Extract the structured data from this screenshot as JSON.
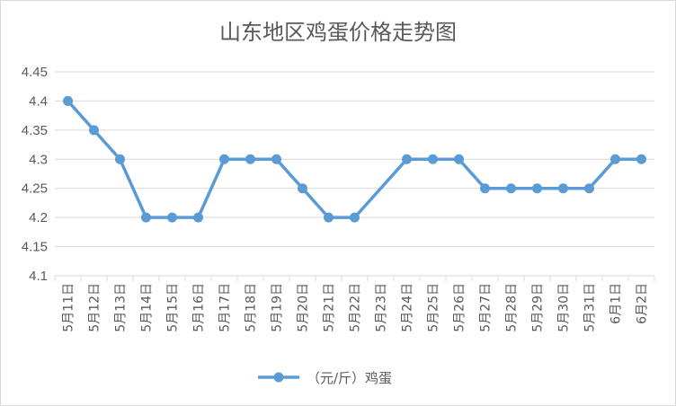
{
  "chart_data": {
    "type": "line",
    "title": "山东地区鸡蛋价格走势图",
    "categories": [
      "5月11日",
      "5月12日",
      "5月13日",
      "5月14日",
      "5月15日",
      "5月16日",
      "5月17日",
      "5月18日",
      "5月19日",
      "5月20日",
      "5月21日",
      "5月22日",
      "5月23日",
      "5月24日",
      "5月25日",
      "5月26日",
      "5月27日",
      "5月28日",
      "5月29日",
      "5月30日",
      "5月31日",
      "6月1日",
      "6月2日"
    ],
    "series": [
      {
        "name": "（元/斤）鸡蛋",
        "values": [
          4.4,
          4.35,
          4.3,
          4.2,
          4.2,
          4.2,
          4.3,
          4.3,
          4.3,
          4.25,
          4.2,
          4.2,
          null,
          4.3,
          4.3,
          4.3,
          4.25,
          4.25,
          4.25,
          4.25,
          4.25,
          4.3,
          4.3
        ],
        "color": "#5b9bd5"
      }
    ],
    "yticks": [
      "4.1",
      "4.15",
      "4.2",
      "4.25",
      "4.3",
      "4.35",
      "4.4",
      "4.45"
    ],
    "ylim": [
      4.1,
      4.45
    ],
    "grid": true,
    "legend_position": "bottom",
    "gap_handling": "connect"
  }
}
